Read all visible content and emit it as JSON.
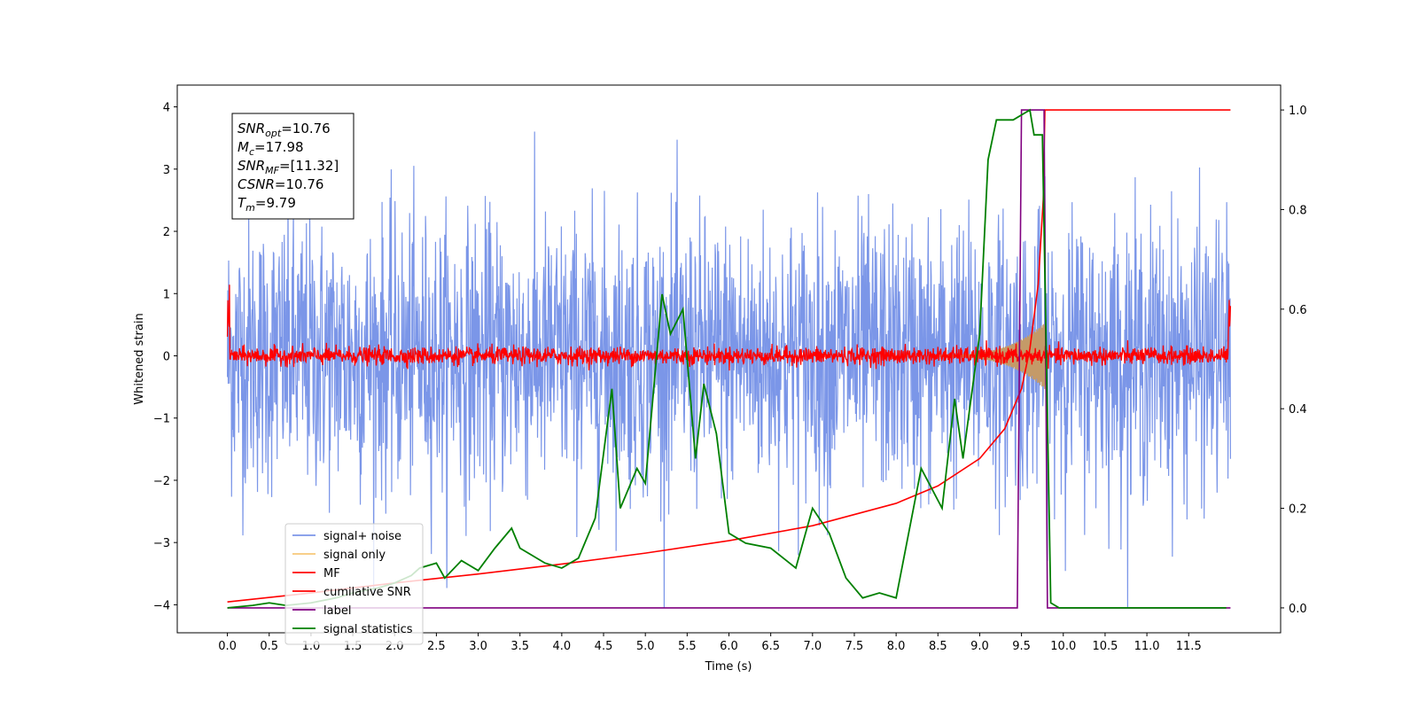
{
  "chart_data": {
    "type": "line",
    "xlabel": "Time (s)",
    "ylabel": "Whitened strain",
    "xlim": [
      -0.6,
      12.6
    ],
    "ylim": [
      -4.45,
      4.35
    ],
    "y2lim": [
      -0.05,
      1.05
    ],
    "x_ticks": [
      "0.0",
      "0.5",
      "1.0",
      "1.5",
      "2.0",
      "2.5",
      "3.0",
      "3.5",
      "4.0",
      "4.5",
      "5.0",
      "5.5",
      "6.0",
      "6.5",
      "7.0",
      "7.5",
      "8.0",
      "8.5",
      "9.0",
      "9.5",
      "10.0",
      "10.5",
      "11.0",
      "11.5"
    ],
    "y_ticks": [
      "4",
      "3",
      "2",
      "1",
      "0",
      "−1",
      "−2",
      "−3",
      "−4"
    ],
    "y2_ticks": [
      "1.0",
      "0.8",
      "0.6",
      "0.4",
      "0.2",
      "0.0"
    ],
    "stats_box": [
      {
        "var": "SNR",
        "sub": "opt",
        "value": "=10.76"
      },
      {
        "var": "M",
        "sub": "c",
        "value": "=17.98"
      },
      {
        "var": "SNR",
        "sub": "MF",
        "value": "=[11.32]"
      },
      {
        "var": "CSNR",
        "sub": "",
        "value": "=10.76"
      },
      {
        "var": "T",
        "sub": "m",
        "value": "=9.79"
      }
    ],
    "legend": [
      {
        "name": "signal+ noise",
        "color": "#7b96e8"
      },
      {
        "name": "signal only",
        "color": "#f7c879"
      },
      {
        "name": "MF",
        "color": "#ff0000"
      },
      {
        "name": "cumilative SNR",
        "color": "#ff0000"
      },
      {
        "name": "label",
        "color": "#800080"
      },
      {
        "name": "signal statistics",
        "color": "#008000"
      }
    ],
    "legend_placement": "lower-left",
    "series": {
      "noise": {
        "x_range": [
          0.0,
          12.0
        ],
        "std": 1.1,
        "color": "#7b96e8"
      },
      "signal": {
        "x_range": [
          8.5,
          9.79
        ],
        "peak_amp": 0.55,
        "color": "#c49a68"
      },
      "mf": {
        "x_range": [
          0.0,
          12.0
        ],
        "std": 0.07,
        "color": "#ff0000"
      },
      "cumulative_snr": {
        "axis": "right",
        "x": [
          0.0,
          1.0,
          2.0,
          3.0,
          4.0,
          5.0,
          6.0,
          7.0,
          8.0,
          8.5,
          9.0,
          9.3,
          9.5,
          9.6,
          9.7,
          9.76,
          9.78,
          12.0
        ],
        "y": [
          0.012,
          0.03,
          0.05,
          0.068,
          0.088,
          0.11,
          0.135,
          0.165,
          0.21,
          0.245,
          0.3,
          0.36,
          0.44,
          0.52,
          0.65,
          0.82,
          1.0,
          1.0
        ]
      },
      "label": {
        "axis": "right",
        "x": [
          0.0,
          9.45,
          9.5,
          9.77,
          9.81,
          12.0
        ],
        "y": [
          0.0,
          0.0,
          1.0,
          1.0,
          0.0,
          0.0
        ]
      },
      "signal_statistics": {
        "axis": "right",
        "x": [
          0.0,
          0.3,
          0.5,
          0.7,
          1.0,
          1.3,
          1.5,
          1.8,
          2.0,
          2.2,
          2.3,
          2.5,
          2.6,
          2.8,
          3.0,
          3.2,
          3.4,
          3.5,
          3.6,
          3.8,
          4.0,
          4.2,
          4.4,
          4.6,
          4.7,
          4.9,
          5.0,
          5.2,
          5.3,
          5.45,
          5.6,
          5.7,
          5.85,
          6.0,
          6.2,
          6.5,
          6.8,
          7.0,
          7.2,
          7.4,
          7.6,
          7.8,
          8.0,
          8.3,
          8.55,
          8.7,
          8.8,
          9.0,
          9.1,
          9.2,
          9.4,
          9.6,
          9.65,
          9.75,
          9.85,
          9.95,
          10.0,
          10.5,
          11.0,
          11.5,
          11.95
        ],
        "y": [
          0.0,
          0.005,
          0.01,
          0.005,
          0.01,
          0.02,
          0.03,
          0.04,
          0.05,
          0.065,
          0.08,
          0.09,
          0.06,
          0.095,
          0.075,
          0.12,
          0.16,
          0.12,
          0.11,
          0.09,
          0.08,
          0.1,
          0.18,
          0.44,
          0.2,
          0.28,
          0.25,
          0.63,
          0.55,
          0.6,
          0.3,
          0.45,
          0.35,
          0.15,
          0.13,
          0.12,
          0.08,
          0.2,
          0.15,
          0.06,
          0.02,
          0.03,
          0.02,
          0.28,
          0.2,
          0.42,
          0.3,
          0.55,
          0.9,
          0.98,
          0.98,
          1.0,
          0.95,
          0.95,
          0.01,
          0.0,
          0.0,
          0.0,
          0.0,
          0.0,
          0.0
        ]
      }
    }
  }
}
